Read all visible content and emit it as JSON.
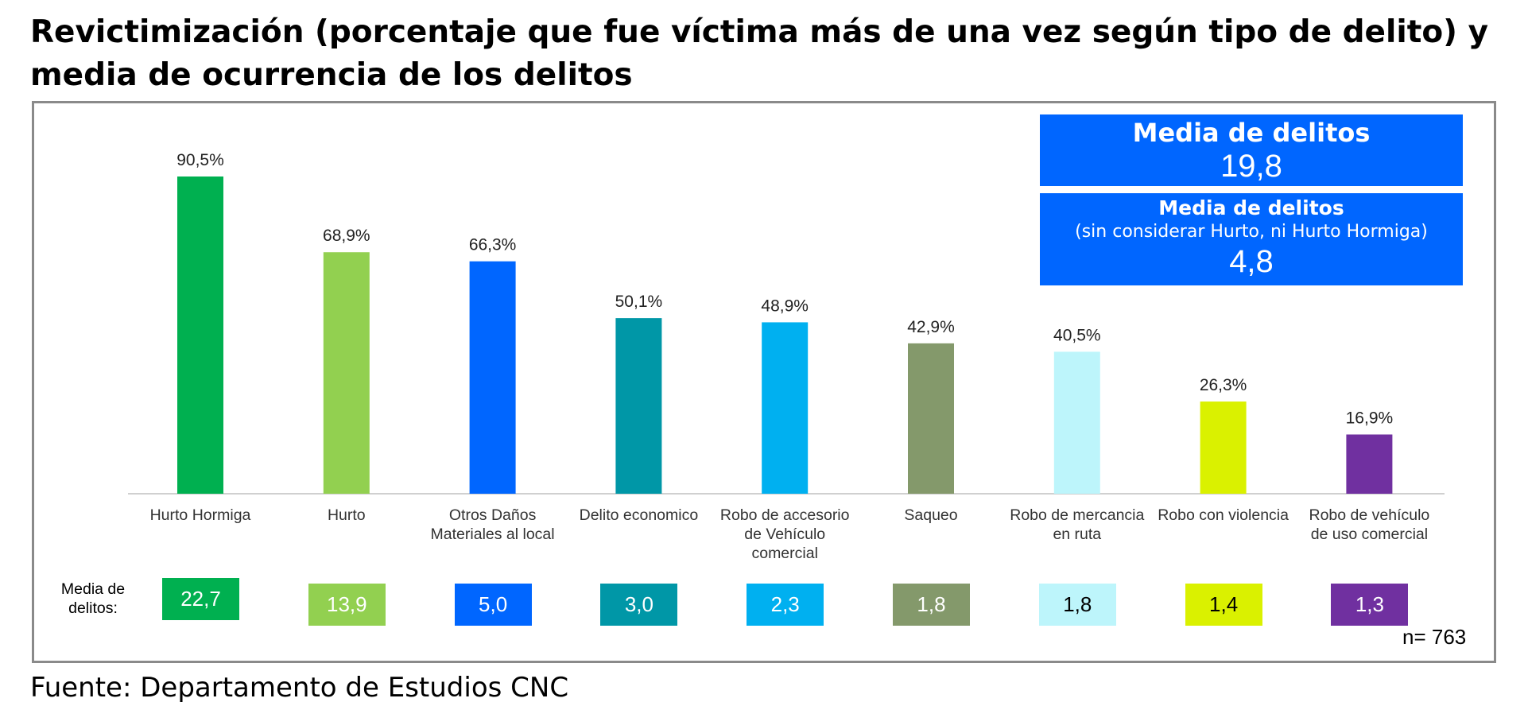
{
  "title": "Revictimización (porcentaje que fue víctima más de una vez según tipo de delito) y media de ocurrencia de los delitos",
  "source": "Fuente: Departamento de Estudios CNC",
  "summary_boxes": {
    "total": {
      "heading": "Media de delitos",
      "value": "19,8"
    },
    "excluding": {
      "heading": "Media de delitos",
      "subheading": "(sin considerar Hurto, ni Hurto Hormiga)",
      "value": "4,8"
    },
    "color": "#0066FF"
  },
  "media_label": "Media de\ndelitos:",
  "n_label": "n= 763",
  "chart_data": {
    "type": "bar",
    "categories": [
      "Hurto Hormiga",
      "Hurto",
      "Otros Daños\nMateriales al local",
      "Delito economico",
      "Robo de accesorio\nde Vehículo\ncomercial",
      "Saqueo",
      "Robo de mercancia\nen ruta",
      "Robo con violencia",
      "Robo de vehículo\nde uso comercial"
    ],
    "values": [
      90.5,
      68.9,
      66.3,
      50.1,
      48.9,
      42.9,
      40.5,
      26.3,
      16.9
    ],
    "value_labels": [
      "90,5%",
      "68,9%",
      "66,3%",
      "50,1%",
      "48,9%",
      "42,9%",
      "40,5%",
      "26,3%",
      "16,9%"
    ],
    "colors": [
      "#00B050",
      "#92D050",
      "#0066FF",
      "#0097A7",
      "#00B0F0",
      "#84996B",
      "#BDF5FB",
      "#DAF100",
      "#7030A0"
    ],
    "ylim": [
      0,
      100
    ],
    "grid": false,
    "media_values": [
      "22,7",
      "13,9",
      "5,0",
      "3,0",
      "2,3",
      "1,8",
      "1,8",
      "1,4",
      "1,3"
    ],
    "media_text_colors": [
      "#ffffff",
      "#ffffff",
      "#ffffff",
      "#ffffff",
      "#ffffff",
      "#ffffff",
      "#000000",
      "#000000",
      "#ffffff"
    ]
  }
}
